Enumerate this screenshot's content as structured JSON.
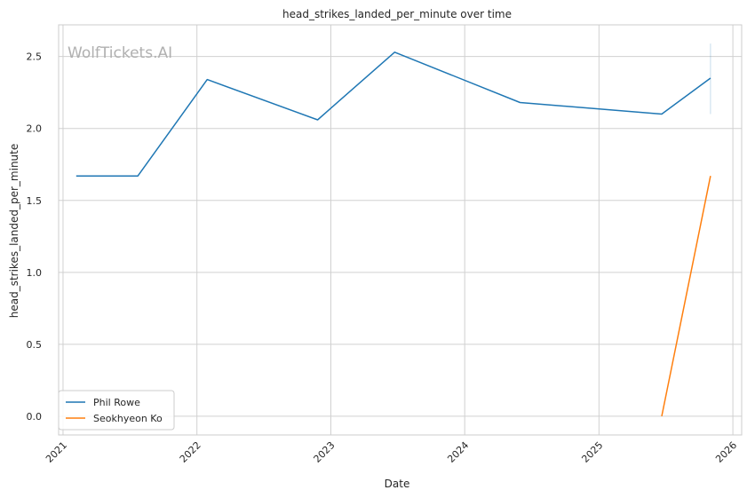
{
  "chart_data": {
    "type": "line",
    "title": "head_strikes_landed_per_minute over time",
    "xlabel": "Date",
    "ylabel": "head_strikes_landed_per_minute",
    "watermark": "WolfTickets.AI",
    "x_ticks": [
      "2021",
      "2022",
      "2023",
      "2024",
      "2025",
      "2026"
    ],
    "y_ticks": [
      "0.0",
      "0.5",
      "1.0",
      "1.5",
      "2.0",
      "2.5"
    ],
    "xlim": [
      "2020-12-20",
      "2026-01-25"
    ],
    "ylim": [
      -0.13,
      2.72
    ],
    "grid": true,
    "legend_position": "lower-left",
    "series": [
      {
        "name": "Phil Rowe",
        "color": "#1f77b4",
        "points": [
          {
            "x": "2021-02-06",
            "y": 1.67
          },
          {
            "x": "2021-07-24",
            "y": 1.67
          },
          {
            "x": "2022-01-29",
            "y": 2.34
          },
          {
            "x": "2022-11-26",
            "y": 2.06
          },
          {
            "x": "2023-06-24",
            "y": 2.53
          },
          {
            "x": "2024-05-31",
            "y": 2.18
          },
          {
            "x": "2025-06-21",
            "y": 2.1
          },
          {
            "x": "2025-11-01",
            "y": 2.35
          }
        ]
      },
      {
        "name": "Seokhyeon Ko",
        "color": "#ff7f0e",
        "points": [
          {
            "x": "2025-06-21",
            "y": 0.0
          },
          {
            "x": "2025-11-01",
            "y": 1.67
          }
        ]
      }
    ],
    "annotations": [
      {
        "type": "error-bar",
        "x": "2025-11-01",
        "y_low": 2.1,
        "y_high": 2.59,
        "color": "#1f77b4"
      }
    ]
  }
}
